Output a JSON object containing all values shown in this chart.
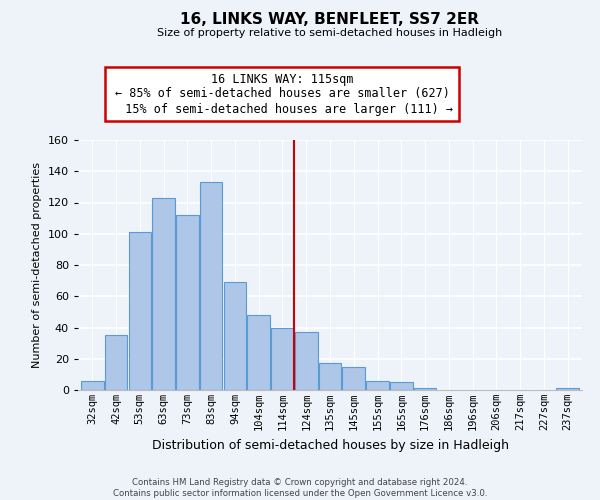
{
  "title": "16, LINKS WAY, BENFLEET, SS7 2ER",
  "subtitle": "Size of property relative to semi-detached houses in Hadleigh",
  "xlabel": "Distribution of semi-detached houses by size in Hadleigh",
  "ylabel": "Number of semi-detached properties",
  "bin_labels": [
    "32sqm",
    "42sqm",
    "53sqm",
    "63sqm",
    "73sqm",
    "83sqm",
    "94sqm",
    "104sqm",
    "114sqm",
    "124sqm",
    "135sqm",
    "145sqm",
    "155sqm",
    "165sqm",
    "176sqm",
    "186sqm",
    "196sqm",
    "206sqm",
    "217sqm",
    "227sqm",
    "237sqm"
  ],
  "bar_values": [
    6,
    35,
    101,
    123,
    112,
    133,
    69,
    48,
    40,
    37,
    17,
    15,
    6,
    5,
    1,
    0,
    0,
    0,
    0,
    0,
    1
  ],
  "bar_color": "#aec6e8",
  "bar_edge_color": "#5b9bd5",
  "property_line_bin": 8,
  "property_size": "115sqm",
  "pct_smaller": 85,
  "count_smaller": 627,
  "pct_larger": 15,
  "count_larger": 111,
  "annotation_box_color": "#ffffff",
  "annotation_box_edge": "#cc0000",
  "vline_color": "#cc0000",
  "ylim": [
    0,
    160
  ],
  "yticks": [
    0,
    20,
    40,
    60,
    80,
    100,
    120,
    140,
    160
  ],
  "footer_line1": "Contains HM Land Registry data © Crown copyright and database right 2024.",
  "footer_line2": "Contains public sector information licensed under the Open Government Licence v3.0.",
  "background_color": "#eef2f9"
}
